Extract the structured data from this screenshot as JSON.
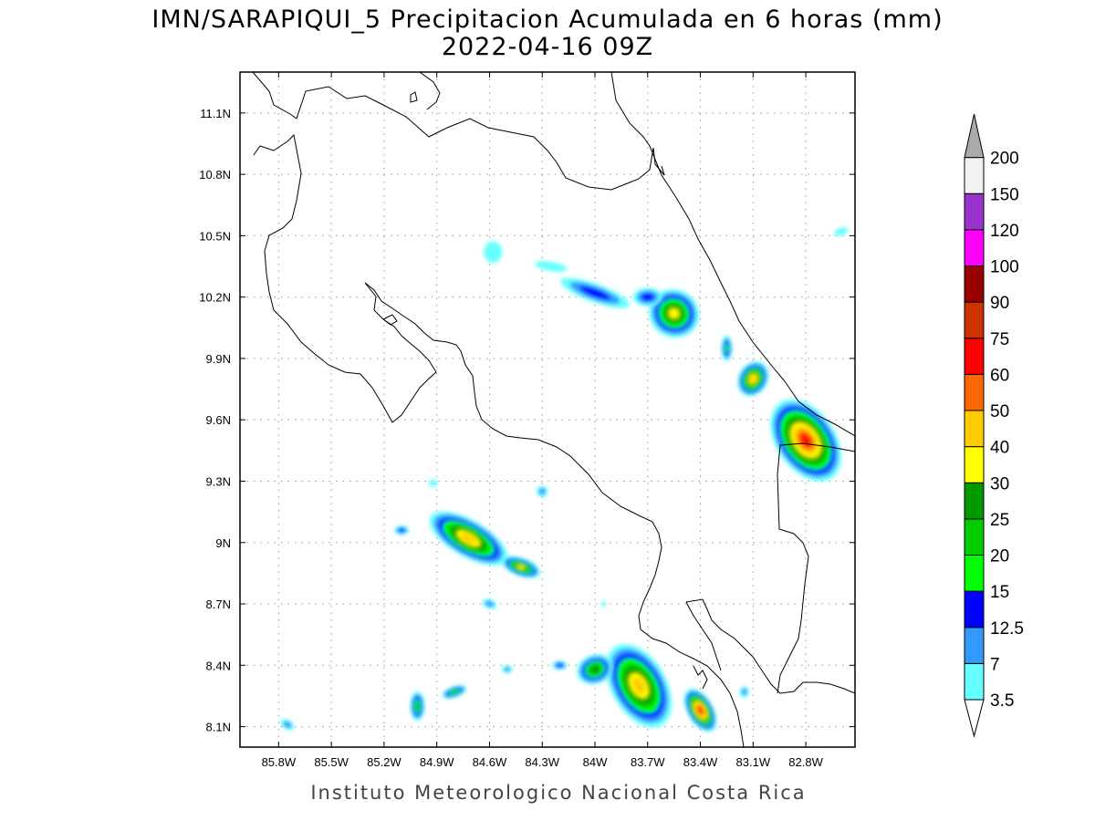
{
  "title_line1": "IMN/SARAPIQUI_5 Precipitacion Acumulada en 6 horas (mm)",
  "title_line2": "2022-04-16 09Z",
  "credit": "Instituto Meteorologico Nacional Costa Rica",
  "map": {
    "lon_range": [
      -86.02,
      -82.52
    ],
    "lat_range": [
      8.0,
      11.3
    ],
    "lon_ticks": [
      {
        "value": -85.8,
        "label": "85.8W"
      },
      {
        "value": -85.5,
        "label": "85.5W"
      },
      {
        "value": -85.2,
        "label": "85.2W"
      },
      {
        "value": -84.9,
        "label": "84.9W"
      },
      {
        "value": -84.6,
        "label": "84.6W"
      },
      {
        "value": -84.3,
        "label": "84.3W"
      },
      {
        "value": -84.0,
        "label": "84W"
      },
      {
        "value": -83.7,
        "label": "83.7W"
      },
      {
        "value": -83.4,
        "label": "83.4W"
      },
      {
        "value": -83.1,
        "label": "83.1W"
      },
      {
        "value": -82.8,
        "label": "82.8W"
      }
    ],
    "lat_ticks": [
      {
        "value": 11.1,
        "label": "11.1N"
      },
      {
        "value": 10.8,
        "label": "10.8N"
      },
      {
        "value": 10.5,
        "label": "10.5N"
      },
      {
        "value": 10.2,
        "label": "10.2N"
      },
      {
        "value": 9.9,
        "label": "9.9N"
      },
      {
        "value": 9.6,
        "label": "9.6N"
      },
      {
        "value": 9.3,
        "label": "9.3N"
      },
      {
        "value": 9.0,
        "label": "9N"
      },
      {
        "value": 8.7,
        "label": "8.7N"
      },
      {
        "value": 8.4,
        "label": "8.4N"
      },
      {
        "value": 8.1,
        "label": "8.1N"
      }
    ],
    "gridlines": true
  },
  "colorbar": {
    "levels": [
      {
        "label": "3.5",
        "color": "#66ffff"
      },
      {
        "label": "7",
        "color": "#3399ff"
      },
      {
        "label": "12.5",
        "color": "#0000ff"
      },
      {
        "label": "15",
        "color": "#00ff00"
      },
      {
        "label": "20",
        "color": "#00cc00"
      },
      {
        "label": "25",
        "color": "#009900"
      },
      {
        "label": "30",
        "color": "#ffff00"
      },
      {
        "label": "40",
        "color": "#ffcc00"
      },
      {
        "label": "50",
        "color": "#ff6600"
      },
      {
        "label": "60",
        "color": "#ff0000"
      },
      {
        "label": "75",
        "color": "#cc3300"
      },
      {
        "label": "90",
        "color": "#990000"
      },
      {
        "label": "100",
        "color": "#ff00ff"
      },
      {
        "label": "120",
        "color": "#9933cc"
      },
      {
        "label": "150",
        "color": "#f2f2f2"
      },
      {
        "label": "200",
        "color": "#aaaaaa"
      }
    ]
  },
  "precip_cells": [
    {
      "lon": -84.0,
      "lat": 10.22,
      "rx": 40,
      "ry": 10,
      "rot": 20,
      "level": 2
    },
    {
      "lon": -83.55,
      "lat": 10.12,
      "rx": 28,
      "ry": 26,
      "rot": 30,
      "level": 6
    },
    {
      "lon": -83.7,
      "lat": 10.2,
      "rx": 16,
      "ry": 10,
      "rot": 0,
      "level": 2
    },
    {
      "lon": -84.25,
      "lat": 10.35,
      "rx": 18,
      "ry": 5,
      "rot": 10,
      "level": 0
    },
    {
      "lon": -84.58,
      "lat": 10.42,
      "rx": 10,
      "ry": 12,
      "rot": 0,
      "level": 0
    },
    {
      "lon": -83.1,
      "lat": 9.8,
      "rx": 16,
      "ry": 20,
      "rot": 30,
      "level": 7
    },
    {
      "lon": -82.8,
      "lat": 9.5,
      "rx": 32,
      "ry": 50,
      "rot": -35,
      "level": 9
    },
    {
      "lon": -83.25,
      "lat": 9.95,
      "rx": 6,
      "ry": 14,
      "rot": 0,
      "level": 3
    },
    {
      "lon": -82.6,
      "lat": 10.52,
      "rx": 8,
      "ry": 4,
      "rot": -20,
      "level": 0
    },
    {
      "lon": -84.72,
      "lat": 9.02,
      "rx": 48,
      "ry": 20,
      "rot": 30,
      "level": 7
    },
    {
      "lon": -84.42,
      "lat": 8.88,
      "rx": 22,
      "ry": 10,
      "rot": 20,
      "level": 6
    },
    {
      "lon": -85.1,
      "lat": 9.06,
      "rx": 8,
      "ry": 5,
      "rot": 0,
      "level": 2
    },
    {
      "lon": -84.3,
      "lat": 9.25,
      "rx": 6,
      "ry": 6,
      "rot": 0,
      "level": 1
    },
    {
      "lon": -84.6,
      "lat": 8.7,
      "rx": 8,
      "ry": 5,
      "rot": 20,
      "level": 1
    },
    {
      "lon": -84.92,
      "lat": 9.29,
      "rx": 5,
      "ry": 4,
      "rot": 0,
      "level": 0
    },
    {
      "lon": -83.75,
      "lat": 8.3,
      "rx": 30,
      "ry": 50,
      "rot": -30,
      "level": 7
    },
    {
      "lon": -83.4,
      "lat": 8.18,
      "rx": 14,
      "ry": 26,
      "rot": -30,
      "level": 9
    },
    {
      "lon": -84.0,
      "lat": 8.38,
      "rx": 20,
      "ry": 16,
      "rot": -20,
      "level": 5
    },
    {
      "lon": -85.01,
      "lat": 8.2,
      "rx": 8,
      "ry": 16,
      "rot": 0,
      "level": 4
    },
    {
      "lon": -84.8,
      "lat": 8.27,
      "rx": 14,
      "ry": 6,
      "rot": -20,
      "level": 4
    },
    {
      "lon": -84.5,
      "lat": 8.38,
      "rx": 6,
      "ry": 4,
      "rot": 0,
      "level": 1
    },
    {
      "lon": -84.2,
      "lat": 8.4,
      "rx": 8,
      "ry": 5,
      "rot": 0,
      "level": 2
    },
    {
      "lon": -85.75,
      "lat": 8.11,
      "rx": 8,
      "ry": 5,
      "rot": 30,
      "level": 1
    },
    {
      "lon": -83.15,
      "lat": 8.27,
      "rx": 5,
      "ry": 6,
      "rot": 0,
      "level": 1
    },
    {
      "lon": -83.95,
      "lat": 8.7,
      "rx": 3,
      "ry": 3,
      "rot": 0,
      "level": 0
    }
  ]
}
